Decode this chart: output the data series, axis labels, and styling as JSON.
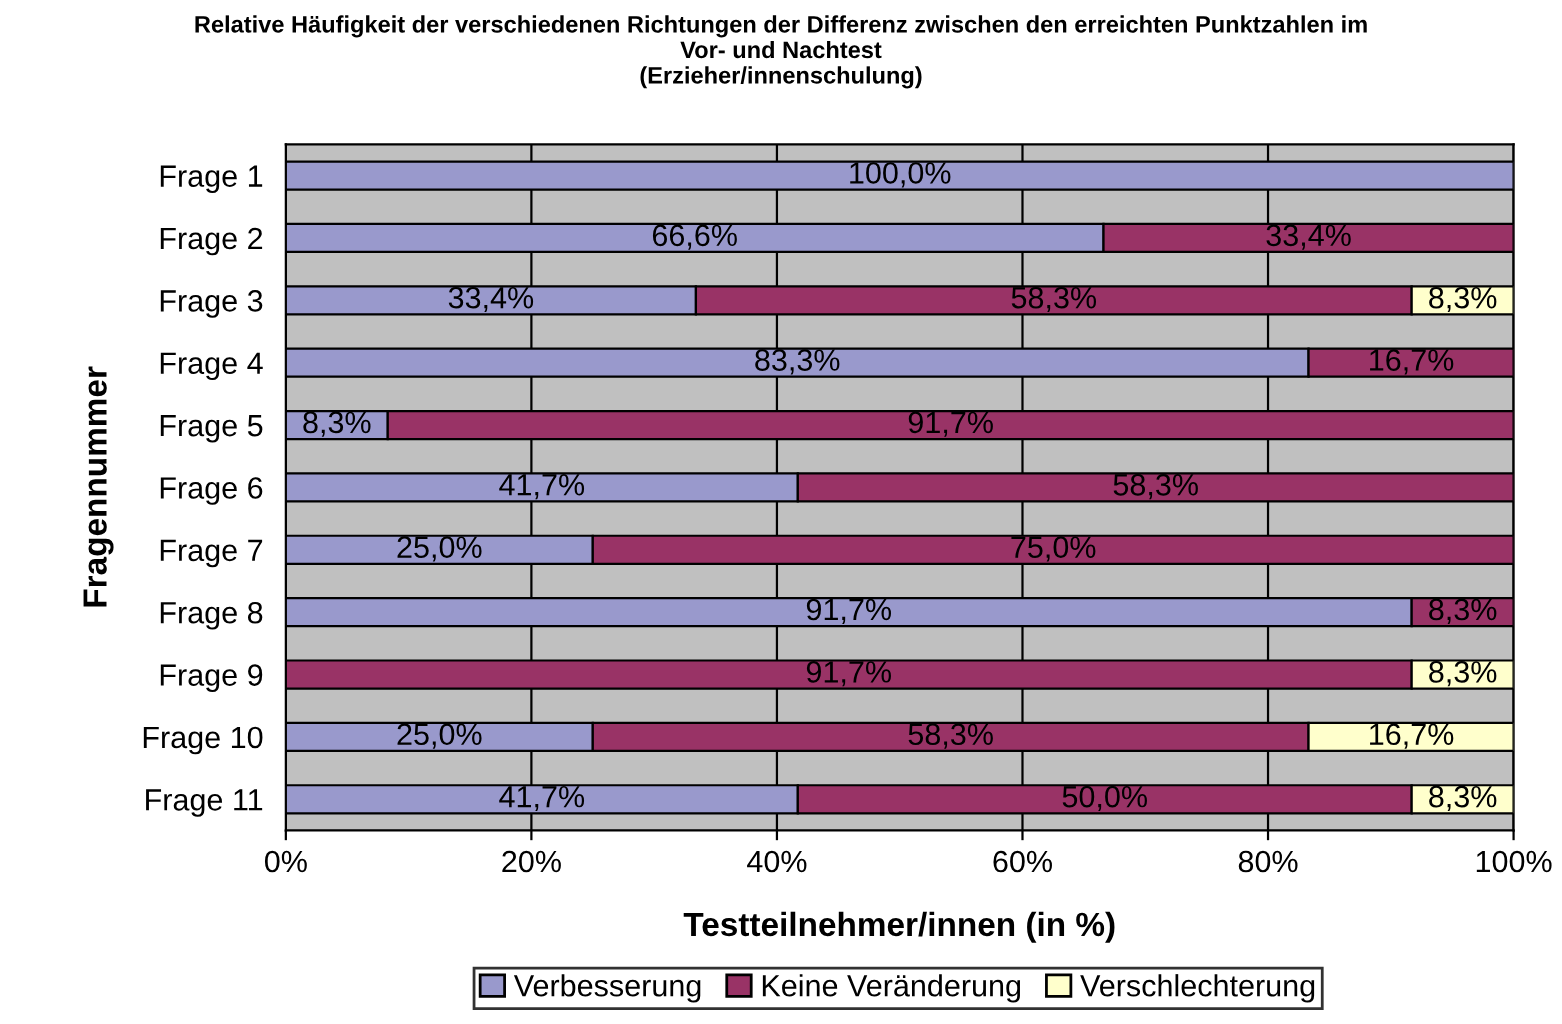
{
  "chart_data": {
    "type": "bar",
    "orientation": "horizontal",
    "stacked": true,
    "title": "Relative Häufigkeit der verschiedenen Richtungen der Differenz zwischen den erreichten Punktzahlen im\nVor- und Nachtest\n(Erzieher/innenschulung)",
    "xlabel": "Testteilnehmer/innen (in %)",
    "ylabel": "Fragennummer",
    "categories": [
      "Frage 1",
      "Frage 2",
      "Frage 3",
      "Frage 4",
      "Frage 5",
      "Frage 6",
      "Frage 7",
      "Frage 8",
      "Frage 9",
      "Frage 10",
      "Frage 11"
    ],
    "series": [
      {
        "name": "Verbesserung",
        "color": "#9999cc",
        "values": [
          100.0,
          66.6,
          33.4,
          83.3,
          8.3,
          41.7,
          25.0,
          91.7,
          0,
          25.0,
          41.7
        ],
        "value_labels": [
          "100,0%",
          "66,6%",
          "33,4%",
          "83,3%",
          "8,3%",
          "41,7%",
          "25,0%",
          "91,7%",
          null,
          "25,0%",
          "41,7%"
        ]
      },
      {
        "name": "Keine Veränderung",
        "color": "#993366",
        "values": [
          0,
          33.4,
          58.3,
          16.7,
          91.7,
          58.3,
          75.0,
          8.3,
          91.7,
          58.3,
          50.0
        ],
        "value_labels": [
          null,
          "33,4%",
          "58,3%",
          "16,7%",
          "91,7%",
          "58,3%",
          "75,0%",
          "8,3%",
          "91,7%",
          "58,3%",
          "50,0%"
        ]
      },
      {
        "name": "Verschlechterung",
        "color": "#ffffcc",
        "values": [
          0,
          0,
          8.3,
          0,
          0,
          0,
          0,
          0,
          8.3,
          16.7,
          8.3
        ],
        "value_labels": [
          null,
          null,
          "8,3%",
          null,
          null,
          null,
          null,
          null,
          "8,3%",
          "16,7%",
          "8,3%"
        ]
      }
    ],
    "xlim": [
      0,
      100
    ],
    "xticks": [
      {
        "value": 0,
        "label": "0%"
      },
      {
        "value": 20,
        "label": "20%"
      },
      {
        "value": 40,
        "label": "40%"
      },
      {
        "value": 60,
        "label": "60%"
      },
      {
        "value": 80,
        "label": "80%"
      },
      {
        "value": 100,
        "label": "100%"
      }
    ],
    "grid": "x",
    "legend": "bottom"
  }
}
